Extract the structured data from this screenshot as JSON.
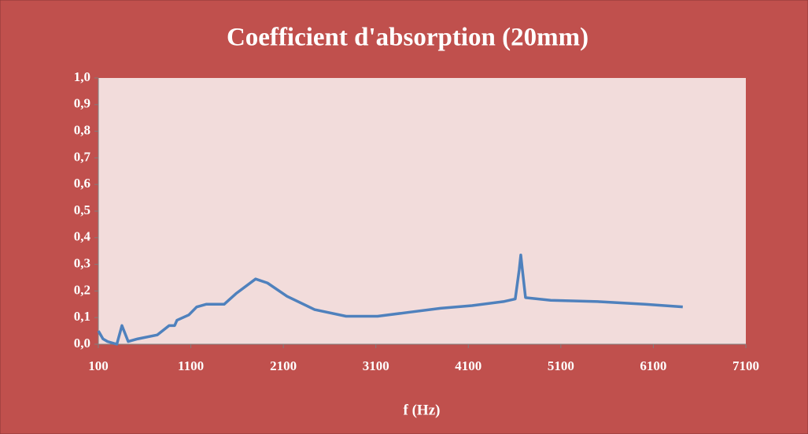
{
  "chart_data": {
    "type": "line",
    "title": "Coefficient d'absorption (20mm)",
    "x_label": "f (Hz)",
    "x": [
      100,
      150,
      200,
      300,
      355,
      423,
      525,
      738,
      865,
      925,
      950,
      1078,
      1163,
      1265,
      1460,
      1588,
      1800,
      1928,
      2140,
      2438,
      2778,
      3119,
      3459,
      3799,
      4139,
      4479,
      4607,
      4650,
      4667,
      4684,
      4718,
      4990,
      5500,
      6010,
      6418
    ],
    "series": [
      {
        "name": "Coefficient d'absorption",
        "color": "#4f81bd",
        "values": [
          0.05,
          0.02,
          0.01,
          0.0,
          0.07,
          0.01,
          0.02,
          0.035,
          0.07,
          0.07,
          0.09,
          0.11,
          0.14,
          0.15,
          0.15,
          0.19,
          0.245,
          0.23,
          0.18,
          0.13,
          0.105,
          0.105,
          0.12,
          0.135,
          0.145,
          0.16,
          0.17,
          0.28,
          0.335,
          0.28,
          0.175,
          0.165,
          0.16,
          0.15,
          0.14
        ]
      }
    ],
    "xlim": [
      100,
      7100
    ],
    "xticks": [
      100,
      1100,
      2100,
      3100,
      4100,
      5100,
      6100,
      7100
    ],
    "ylim": [
      0,
      1
    ],
    "yticks": [
      {
        "value": 0,
        "label": "0,0"
      },
      {
        "value": 0.1,
        "label": "0,1"
      },
      {
        "value": 0.2,
        "label": "0,2"
      },
      {
        "value": 0.3,
        "label": "0,3"
      },
      {
        "value": 0.4,
        "label": "0,4"
      },
      {
        "value": 0.5,
        "label": "0,5"
      },
      {
        "value": 0.6,
        "label": "0,6"
      },
      {
        "value": 0.7,
        "label": "0,7"
      },
      {
        "value": 0.8,
        "label": "0,8"
      },
      {
        "value": 0.9,
        "label": "0,9"
      },
      {
        "value": 1,
        "label": "1,0"
      }
    ],
    "plot_background": "#f2dcdb"
  }
}
